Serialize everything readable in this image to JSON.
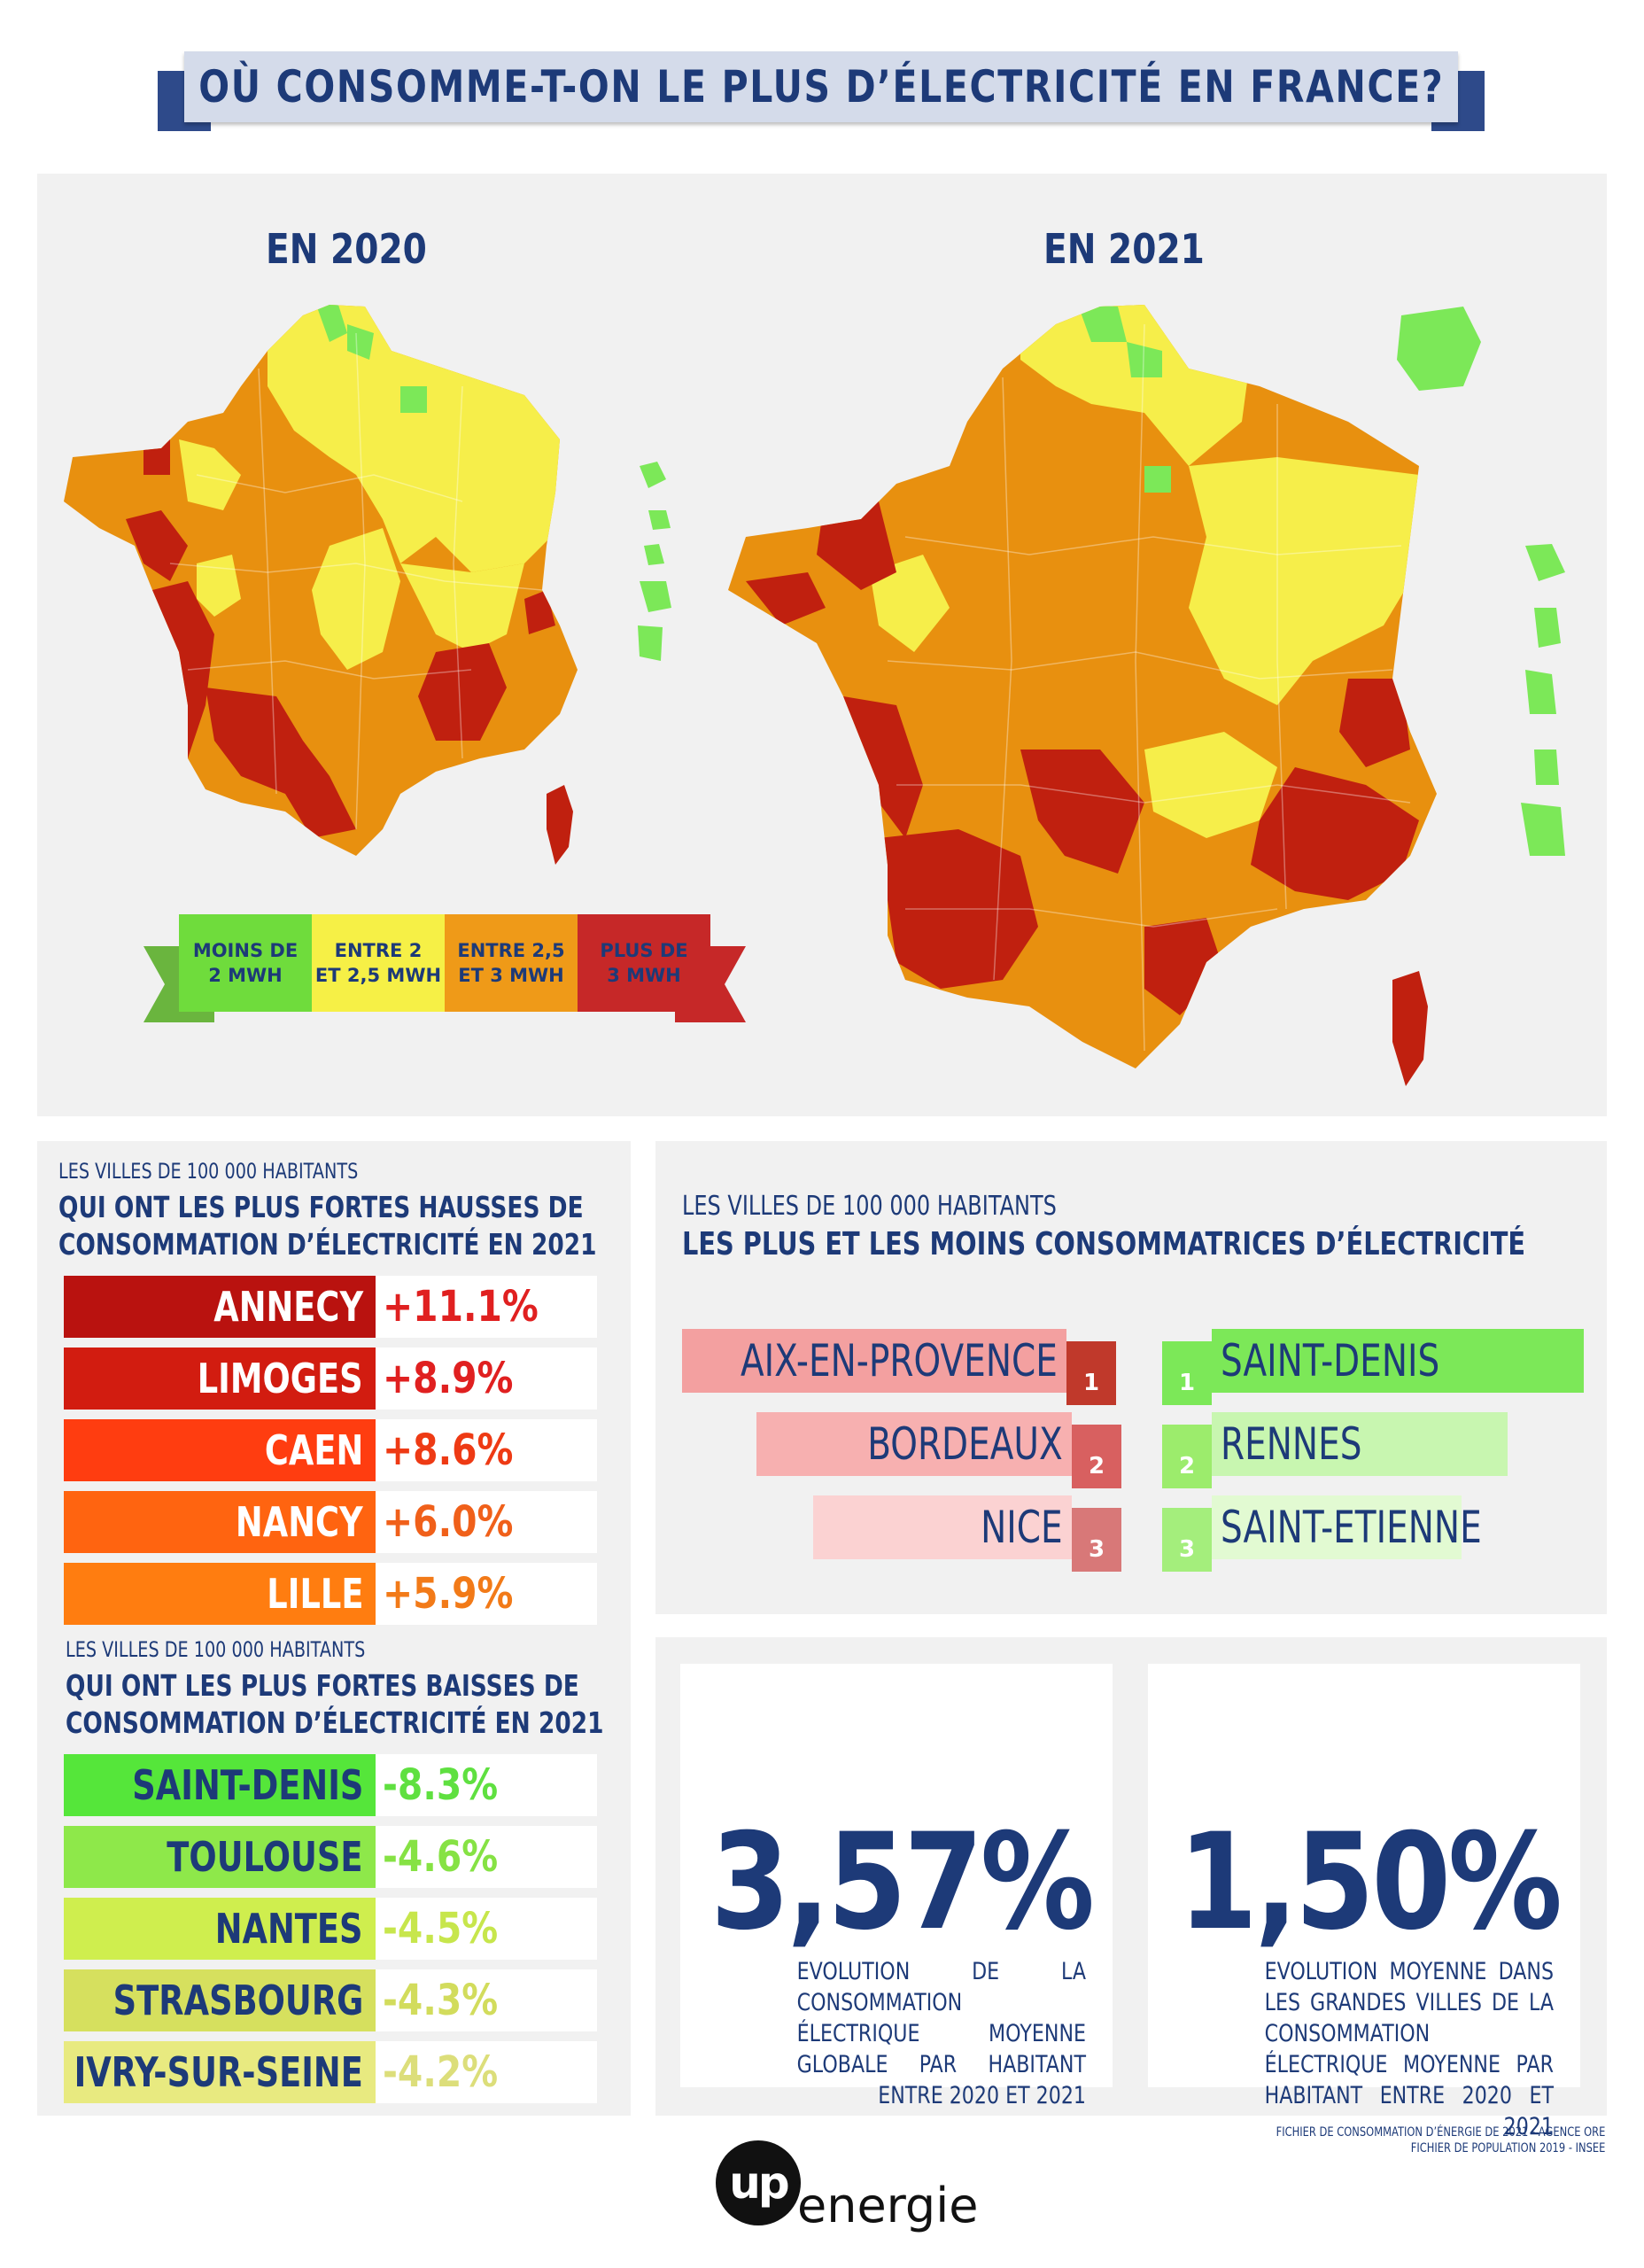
{
  "title": "OÙ CONSOMME-T-ON LE PLUS D’ÉLECTRICITÉ EN FRANCE?",
  "maps": {
    "heading_2020": "EN 2020",
    "heading_2021": "EN 2021"
  },
  "legend": [
    {
      "line1": "MOINS DE",
      "line2": "2 MWH",
      "color": "#6fdc3c"
    },
    {
      "line1": "ENTRE 2",
      "line2": "ET 2,5 MWH",
      "color": "#f6f046"
    },
    {
      "line1": "ENTRE 2,5",
      "line2": "ET 3 MWH",
      "color": "#ef9a18"
    },
    {
      "line1": "PLUS DE",
      "line2": "3 MWH",
      "color": "#c62828"
    }
  ],
  "colors": {
    "navy": "#1d3a78",
    "green": "#7ce858",
    "yellow": "#f6ee4a",
    "orange": "#e8900f",
    "red": "#c0200f"
  },
  "hausses": {
    "small": "LES VILLES DE 100 000 HABITANTS",
    "line1": "QUI ONT LES PLUS FORTES HAUSSES DE",
    "line2": "CONSOMMATION D’ÉLECTRICITÉ EN 2021",
    "rows": [
      {
        "city": "ANNECY",
        "pct": "+11.1%",
        "bg": "#b9120f",
        "pctColor": "#e02020"
      },
      {
        "city": "LIMOGES",
        "pct": "+8.9%",
        "bg": "#d21c10",
        "pctColor": "#e02020"
      },
      {
        "city": "CAEN",
        "pct": "+8.6%",
        "bg": "#ff3d10",
        "pctColor": "#ee3a14"
      },
      {
        "city": "NANCY",
        "pct": "+6.0%",
        "bg": "#ff6410",
        "pctColor": "#f0601a"
      },
      {
        "city": "LILLE",
        "pct": "+5.9%",
        "bg": "#ff7d10",
        "pctColor": "#f27a18"
      }
    ]
  },
  "baisses": {
    "small": "LES VILLES DE 100 000 HABITANTS",
    "line1": "QUI ONT LES PLUS FORTES BAISSES DE",
    "line2": "CONSOMMATION D’ÉLECTRICITÉ EN 2021",
    "rows": [
      {
        "city": "SAINT-DENIS",
        "pct": "-8.3%",
        "bg": "#55e63a",
        "pctColor": "#5fe040"
      },
      {
        "city": "TOULOUSE",
        "pct": "-4.6%",
        "bg": "#8ee84a",
        "pctColor": "#86e244"
      },
      {
        "city": "NANTES",
        "pct": "-4.5%",
        "bg": "#cfee4e",
        "pctColor": "#c7e64c"
      },
      {
        "city": "STRASBOURG",
        "pct": "-4.3%",
        "bg": "#d6e05e",
        "pctColor": "#d2dc5c"
      },
      {
        "city": "IVRY-SUR-SEINE",
        "pct": "-4.2%",
        "bg": "#e8ea80",
        "pctColor": "#dcde7a"
      }
    ]
  },
  "ranking": {
    "small": "LES VILLES DE 100 000 HABITANTS",
    "big": "LES PLUS ET LES MOINS CONSOMMATRICES D’ÉLECTRICITÉ",
    "plus": [
      {
        "rank": "1",
        "city": "AIX-EN-PROVENCE"
      },
      {
        "rank": "2",
        "city": "BORDEAUX"
      },
      {
        "rank": "3",
        "city": "NICE"
      }
    ],
    "moins": [
      {
        "rank": "1",
        "city": "SAINT-DENIS"
      },
      {
        "rank": "2",
        "city": "RENNES"
      },
      {
        "rank": "3",
        "city": "SAINT-ETIENNE"
      }
    ]
  },
  "stats": [
    {
      "value": "3,57%",
      "desc": "EVOLUTION DE LA CONSOMMATION ÉLECTRIQUE MOYENNE GLOBALE PAR HABITANT ENTRE 2020 ET 2021"
    },
    {
      "value": "1,50%",
      "desc": "EVOLUTION MOYENNE DANS LES GRANDES VILLES DE LA CONSOMMATION ÉLECTRIQUE MOYENNE PAR HABITANT ENTRE 2020 ET 2021"
    }
  ],
  "sources": {
    "line1": "FICHIER DE CONSOMMATION D’ÉNERGIE DE 2021 - AGENCE ORE",
    "line2": "FICHIER DE POPULATION 2019 - INSEE"
  },
  "logo": {
    "mark": "up",
    "word": "energie"
  }
}
